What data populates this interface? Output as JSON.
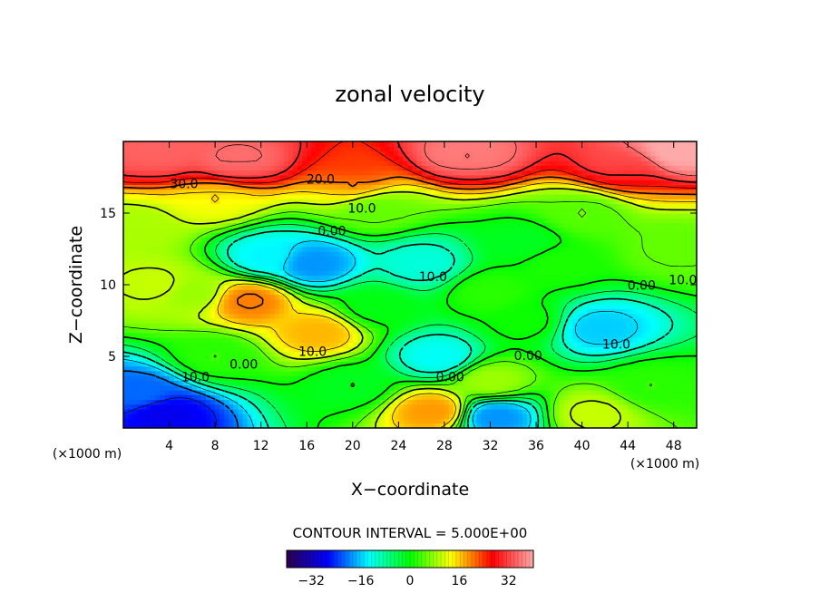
{
  "chart_data": {
    "type": "heatmap",
    "title": "zonal velocity",
    "xlabel": "X−coordinate",
    "ylabel": "Z−coordinate",
    "x_units": "(×1000 m)",
    "x_units_right": "(×1000 m)",
    "xlim": [
      0,
      50
    ],
    "ylim": [
      0,
      20
    ],
    "x_ticks": [
      4,
      8,
      12,
      16,
      20,
      24,
      28,
      32,
      36,
      40,
      44,
      48
    ],
    "x_tick_labels": [
      "4",
      "8",
      "12",
      "16",
      "20",
      "24",
      "28",
      "32",
      "36",
      "40",
      "44",
      "48"
    ],
    "y_ticks": [
      5,
      10,
      15
    ],
    "y_tick_labels": [
      "5",
      "10",
      "15"
    ],
    "contour_interval_text": "CONTOUR INTERVAL = 5.000E+00",
    "contour_interval": 5.0,
    "contour_labels": [
      {
        "text": "30.0",
        "x": 5.3,
        "y": 17.0
      },
      {
        "text": "20.0",
        "x": 17.2,
        "y": 17.3
      },
      {
        "text": "10.0",
        "x": 20.8,
        "y": 15.3
      },
      {
        "text": "0.00",
        "x": 18.2,
        "y": 13.7
      },
      {
        "text": "10.0",
        "x": 27.0,
        "y": 10.5
      },
      {
        "text": "10.0",
        "x": 16.5,
        "y": 5.3
      },
      {
        "text": "0.00",
        "x": 10.5,
        "y": 4.4
      },
      {
        "text": "10.0",
        "x": 6.3,
        "y": 3.5
      },
      {
        "text": "0.00",
        "x": 28.5,
        "y": 3.5
      },
      {
        "text": "0.00",
        "x": 35.3,
        "y": 5.0
      },
      {
        "text": "10.0",
        "x": 43.0,
        "y": 5.8
      },
      {
        "text": "0.00",
        "x": 45.2,
        "y": 9.9
      },
      {
        "text": "10.0",
        "x": 48.8,
        "y": 10.3
      }
    ],
    "colorbar": {
      "range": [
        -40,
        40
      ],
      "ticks": [
        -32,
        -16,
        0,
        16,
        32
      ],
      "tick_labels": [
        "−32",
        "−16",
        "0",
        "16",
        "32"
      ],
      "colors": [
        "#2a004d",
        "#0000ff",
        "#00ffff",
        "#00ff00",
        "#ffff00",
        "#ff0000",
        "#ffaaaa"
      ]
    },
    "field_features": [
      {
        "x": 41.5,
        "y": 7.0,
        "value": -18
      },
      {
        "x": 27.5,
        "y": 5.0,
        "value": -14
      },
      {
        "x": 26.0,
        "y": 11.5,
        "value": -12
      },
      {
        "x": 16.5,
        "y": 11.5,
        "value": -22
      },
      {
        "x": 12.5,
        "y": 12.0,
        "value": -15
      },
      {
        "x": 3.5,
        "y": 1.0,
        "value": -34
      },
      {
        "x": 1.5,
        "y": 2.5,
        "value": -25
      },
      {
        "x": 32.5,
        "y": 0.8,
        "value": -22
      },
      {
        "x": 35.0,
        "y": 7.5,
        "value": 4
      },
      {
        "x": 38.0,
        "y": 11.5,
        "value": 5
      },
      {
        "x": 22.0,
        "y": 8.5,
        "value": 2
      },
      {
        "x": 32.0,
        "y": 9.5,
        "value": 6
      },
      {
        "x": 11.0,
        "y": 8.9,
        "value": 30
      },
      {
        "x": 17.0,
        "y": 6.7,
        "value": 26
      },
      {
        "x": 27.0,
        "y": 1.2,
        "value": 28
      },
      {
        "x": 41.0,
        "y": 1.0,
        "value": 17
      },
      {
        "x": 32.0,
        "y": 3.3,
        "value": 14
      },
      {
        "x": 3.0,
        "y": 10.0,
        "value": 17
      },
      {
        "x": 6.0,
        "y": 9.5,
        "value": 14
      },
      {
        "x": 22.0,
        "y": 15.3,
        "value": 10
      },
      {
        "x": 40.0,
        "y": 15.0,
        "value": 9
      },
      {
        "x": 8.0,
        "y": 16.0,
        "value": 20
      },
      {
        "x": 20.0,
        "y": 17.0,
        "value": 22
      },
      {
        "x": 10.0,
        "y": 18.5,
        "value": 33
      },
      {
        "x": 30.0,
        "y": 19.0,
        "value": 34
      },
      {
        "x": 44.0,
        "y": 18.0,
        "value": 30
      },
      {
        "x": 48.5,
        "y": 19.3,
        "value": 38
      },
      {
        "x": 3.0,
        "y": 19.0,
        "value": 32
      },
      {
        "x": 35.0,
        "y": 13.0,
        "value": 1
      },
      {
        "x": 8.0,
        "y": 5.0,
        "value": 6
      },
      {
        "x": 20.0,
        "y": 3.0,
        "value": 1
      },
      {
        "x": 46.0,
        "y": 3.0,
        "value": 6
      },
      {
        "x": 48.0,
        "y": 12.5,
        "value": 10
      },
      {
        "x": 1.0,
        "y": 14.0,
        "value": 15
      }
    ]
  }
}
